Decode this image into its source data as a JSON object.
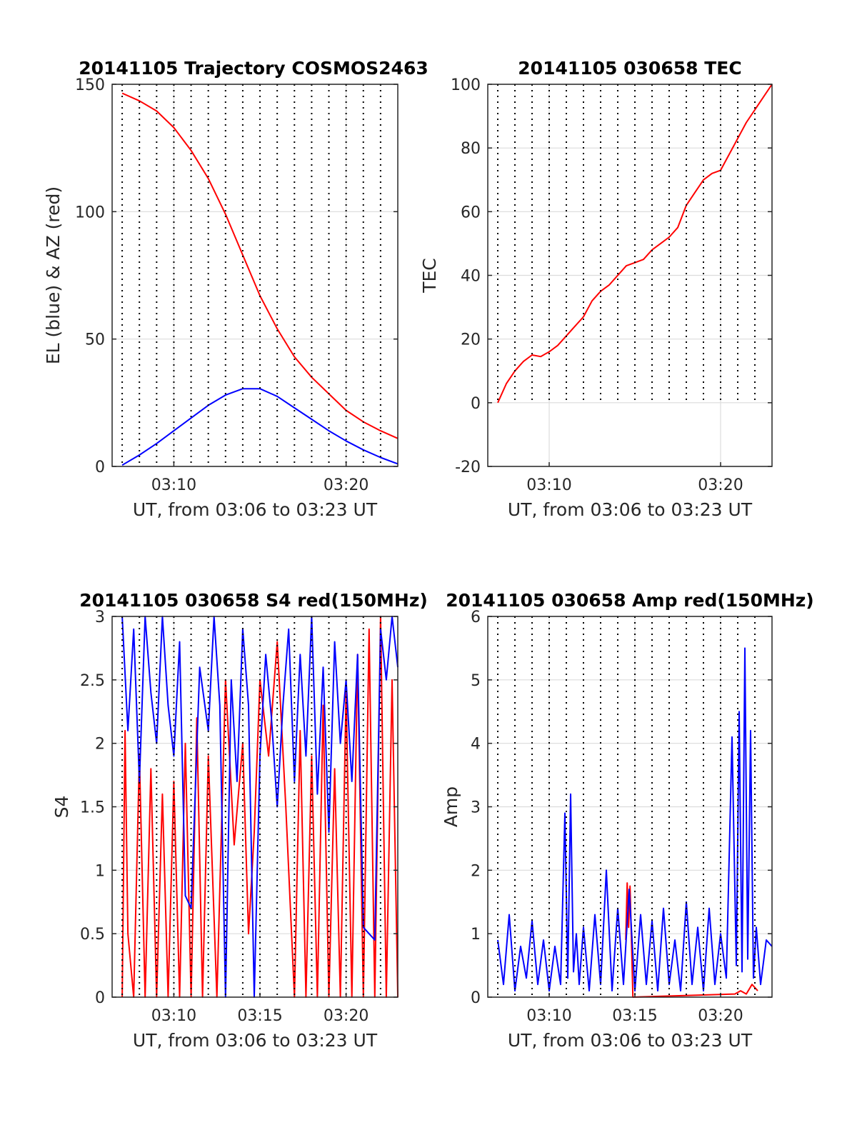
{
  "figure": {
    "background": "#ffffff",
    "colors": {
      "red": "#ff0000",
      "blue": "#0000ff",
      "grid": "#dcdcdc",
      "vline": "#000000",
      "axis": "#262626"
    }
  },
  "chart_data": [
    {
      "type": "line",
      "title": "20141105 Trajectory COSMOS2463",
      "xlabel": "UT, from 03:06 to 03:23 UT",
      "ylabel": "EL (blue) & AZ (red)",
      "xlim": [
        "03:06:25",
        "03:23:00"
      ],
      "ylim": [
        0,
        150
      ],
      "xticks": [
        "03:10",
        "03:20"
      ],
      "yticks": [
        0,
        50,
        100,
        150
      ],
      "grid": true,
      "series": [
        {
          "color": "#ff0000",
          "x": [
            "03:07:00",
            "03:08:00",
            "03:09:00",
            "03:10:00",
            "03:11:00",
            "03:12:00",
            "03:13:00",
            "03:14:00",
            "03:15:00",
            "03:16:00",
            "03:17:00",
            "03:18:00",
            "03:19:00",
            "03:20:00",
            "03:21:00",
            "03:22:00",
            "03:23:00"
          ],
          "y": [
            146.5,
            143.5,
            139.5,
            133,
            124,
            113,
            99,
            83,
            67,
            54,
            43,
            35,
            28.5,
            22,
            17.5,
            14,
            11
          ]
        },
        {
          "color": "#0000ff",
          "x": [
            "03:07:00",
            "03:08:00",
            "03:09:00",
            "03:10:00",
            "03:11:00",
            "03:12:00",
            "03:13:00",
            "03:14:00",
            "03:15:00",
            "03:16:00",
            "03:17:00",
            "03:18:00",
            "03:19:00",
            "03:20:00",
            "03:21:00",
            "03:22:00",
            "03:23:00"
          ],
          "y": [
            0.5,
            4.5,
            9,
            14,
            19,
            24,
            28,
            30.5,
            30.5,
            27.5,
            23,
            18.5,
            14,
            10,
            6.5,
            3.5,
            1
          ]
        }
      ]
    },
    {
      "type": "line",
      "title": "20141105 030658 TEC",
      "xlabel": "UT, from 03:06 to 03:23 UT",
      "ylabel": "TEC",
      "xlim": [
        "03:06:25",
        "03:23:00"
      ],
      "ylim": [
        -20,
        100
      ],
      "xticks": [
        "03:10",
        "03:20"
      ],
      "yticks": [
        -20,
        0,
        20,
        40,
        60,
        80,
        100
      ],
      "grid": true,
      "series": [
        {
          "color": "#ff0000",
          "x": [
            "03:07:00",
            "03:07:30",
            "03:08:00",
            "03:08:30",
            "03:09:00",
            "03:09:30",
            "03:10:00",
            "03:10:30",
            "03:11:00",
            "03:11:30",
            "03:12:00",
            "03:12:30",
            "03:13:00",
            "03:13:30",
            "03:14:00",
            "03:14:30",
            "03:15:00",
            "03:15:30",
            "03:16:00",
            "03:16:30",
            "03:17:00",
            "03:17:30",
            "03:18:00",
            "03:18:30",
            "03:19:00",
            "03:19:30",
            "03:20:00",
            "03:20:30",
            "03:21:00",
            "03:21:30",
            "03:22:00",
            "03:22:30",
            "03:23:00"
          ],
          "y": [
            0,
            6,
            10,
            13,
            15,
            14.5,
            16,
            18,
            21,
            24,
            27,
            32,
            35,
            37,
            40,
            43,
            44,
            45,
            48,
            50,
            52,
            55,
            62,
            66,
            70,
            72,
            73,
            78,
            83,
            88,
            92,
            96,
            100
          ]
        }
      ]
    },
    {
      "type": "line",
      "title": "20141105 030658 S4 red(150MHz)",
      "xlabel": "UT, from 03:06 to 03:23 UT",
      "ylabel": "S4",
      "xlim": [
        "03:06:25",
        "03:23:00"
      ],
      "ylim": [
        0,
        3
      ],
      "xticks": [
        "03:10",
        "03:15",
        "03:20"
      ],
      "yticks": [
        0,
        0.5,
        1,
        1.5,
        2,
        2.5,
        3
      ],
      "grid": true,
      "series": [
        {
          "color": "#ff0000",
          "x": [
            "03:07:00",
            "03:07:10",
            "03:07:20",
            "03:07:40",
            "03:08:00",
            "03:08:20",
            "03:08:40",
            "03:09:00",
            "03:09:20",
            "03:09:40",
            "03:10:00",
            "03:10:20",
            "03:10:40",
            "03:11:00",
            "03:11:20",
            "03:11:40",
            "03:12:00",
            "03:12:30",
            "03:13:00",
            "03:13:30",
            "03:14:00",
            "03:14:20",
            "03:14:40",
            "03:15:00",
            "03:15:30",
            "03:16:00",
            "03:16:30",
            "03:17:00",
            "03:17:20",
            "03:17:40",
            "03:18:00",
            "03:18:20",
            "03:18:40",
            "03:19:00",
            "03:19:20",
            "03:19:40",
            "03:20:00",
            "03:20:20",
            "03:20:40",
            "03:21:00",
            "03:21:20",
            "03:21:40",
            "03:22:00",
            "03:22:20",
            "03:22:40",
            "03:23:00"
          ],
          "y": [
            0,
            2.1,
            0.5,
            0,
            1.9,
            0,
            1.8,
            0,
            1.6,
            0,
            1.7,
            0,
            2.0,
            0,
            2.2,
            0,
            1.9,
            0,
            2.5,
            1.2,
            2.0,
            0.5,
            1.3,
            2.5,
            1.9,
            2.8,
            1.5,
            0,
            2.1,
            0,
            1.9,
            0,
            2.3,
            0,
            1.8,
            0,
            2.4,
            0,
            2.7,
            0,
            2.9,
            0,
            3.0,
            0,
            2.5,
            0
          ]
        },
        {
          "color": "#0000ff",
          "x": [
            "03:07:00",
            "03:07:20",
            "03:07:40",
            "03:08:00",
            "03:08:20",
            "03:08:40",
            "03:09:00",
            "03:09:20",
            "03:09:40",
            "03:10:00",
            "03:10:20",
            "03:10:40",
            "03:11:00",
            "03:11:30",
            "03:12:00",
            "03:12:20",
            "03:12:40",
            "03:13:00",
            "03:13:20",
            "03:13:40",
            "03:14:00",
            "03:14:20",
            "03:14:40",
            "03:15:00",
            "03:15:20",
            "03:15:40",
            "03:16:00",
            "03:16:20",
            "03:16:40",
            "03:17:00",
            "03:17:20",
            "03:17:40",
            "03:18:00",
            "03:18:20",
            "03:18:40",
            "03:19:00",
            "03:19:20",
            "03:19:40",
            "03:20:00",
            "03:20:20",
            "03:20:40",
            "03:21:00",
            "03:21:20",
            "03:21:40",
            "03:22:00",
            "03:22:20",
            "03:22:40",
            "03:23:00"
          ],
          "y": [
            3.0,
            2.1,
            2.9,
            1.7,
            3.0,
            2.4,
            2.0,
            3.0,
            2.3,
            1.9,
            2.8,
            0.8,
            0.7,
            2.6,
            2.1,
            3.0,
            2.3,
            0,
            2.5,
            1.7,
            2.9,
            2.3,
            0,
            1.9,
            2.7,
            2.2,
            1.5,
            2.3,
            2.9,
            1.7,
            2.7,
            1.9,
            3.0,
            1.6,
            2.6,
            1.3,
            2.8,
            2.0,
            2.5,
            1.7,
            2.7,
            0.55,
            0.5,
            0.45,
            2.9,
            2.5,
            3.0,
            2.6
          ]
        }
      ]
    },
    {
      "type": "line",
      "title": "20141105 030658 Amp red(150MHz)",
      "xlabel": "UT, from 03:06 to 03:23 UT",
      "ylabel": "Amp",
      "xlim": [
        "03:06:25",
        "03:23:00"
      ],
      "ylim": [
        0,
        6
      ],
      "xticks": [
        "03:10",
        "03:15",
        "03:20"
      ],
      "yticks": [
        0,
        1,
        2,
        3,
        4,
        5,
        6
      ],
      "grid": true,
      "series": [
        {
          "color": "#ff0000",
          "x": [
            "03:14:28",
            "03:14:33",
            "03:14:38",
            "03:14:43",
            "03:14:48",
            "03:14:53",
            "03:20:50",
            "03:21:10",
            "03:21:30",
            "03:21:50",
            "03:22:10"
          ],
          "y": [
            0.9,
            1.8,
            1.1,
            1.75,
            0.9,
            0,
            0.05,
            0.1,
            0.05,
            0.2,
            0.1
          ]
        },
        {
          "color": "#0000ff",
          "x": [
            "03:07:00",
            "03:07:20",
            "03:07:40",
            "03:08:00",
            "03:08:20",
            "03:08:40",
            "03:09:00",
            "03:09:20",
            "03:09:40",
            "03:10:00",
            "03:10:20",
            "03:10:40",
            "03:10:55",
            "03:11:05",
            "03:11:15",
            "03:11:25",
            "03:11:35",
            "03:11:45",
            "03:12:00",
            "03:12:20",
            "03:12:40",
            "03:13:00",
            "03:13:20",
            "03:13:40",
            "03:14:00",
            "03:14:20",
            "03:14:40",
            "03:15:00",
            "03:15:20",
            "03:15:40",
            "03:16:00",
            "03:16:20",
            "03:16:40",
            "03:17:00",
            "03:17:20",
            "03:17:40",
            "03:18:00",
            "03:18:20",
            "03:18:40",
            "03:19:00",
            "03:19:20",
            "03:19:40",
            "03:20:00",
            "03:20:20",
            "03:20:40",
            "03:20:55",
            "03:21:05",
            "03:21:15",
            "03:21:25",
            "03:21:35",
            "03:21:45",
            "03:21:55",
            "03:22:05",
            "03:22:20",
            "03:22:40",
            "03:23:00"
          ],
          "y": [
            0.9,
            0.2,
            1.3,
            0.1,
            0.8,
            0.3,
            1.2,
            0.2,
            0.9,
            0.1,
            0.8,
            0.2,
            2.9,
            0.3,
            3.2,
            0.4,
            1.0,
            0.2,
            1.1,
            0.1,
            1.3,
            0.2,
            2.0,
            0.1,
            1.4,
            0.2,
            1.7,
            0.1,
            1.3,
            0.2,
            1.2,
            0.1,
            1.4,
            0.2,
            0.9,
            0.1,
            1.5,
            0.2,
            1.1,
            0.1,
            1.4,
            0.2,
            1.0,
            0.3,
            4.1,
            0.5,
            4.5,
            0.4,
            5.5,
            0.6,
            4.2,
            0.3,
            1.1,
            0.2,
            0.9,
            0.8
          ]
        }
      ]
    }
  ]
}
